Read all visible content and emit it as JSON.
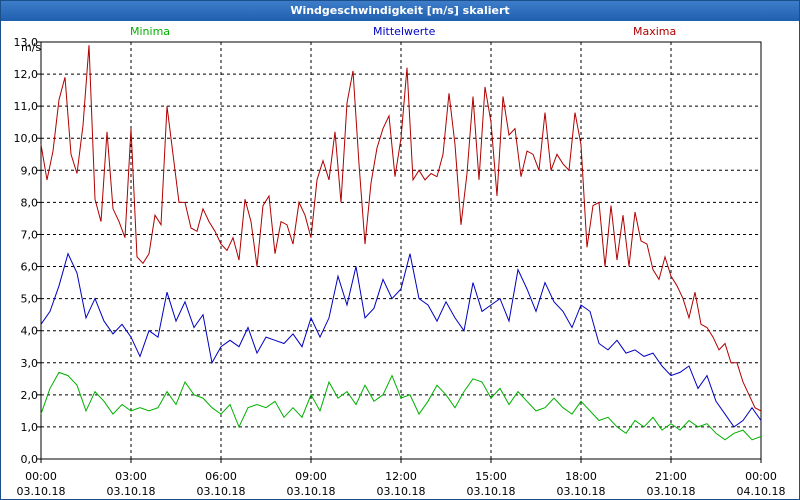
{
  "window": {
    "title": "Windgeschwindigkeit [m/s] skaliert"
  },
  "legend": [
    {
      "name": "Minima",
      "color": "#00b000"
    },
    {
      "name": "Mittelwerte",
      "color": "#0000c0"
    },
    {
      "name": "Maxima",
      "color": "#b00000"
    }
  ],
  "chart_data": {
    "type": "line",
    "title": "Windgeschwindigkeit [m/s] skaliert",
    "ylabel": "m/s",
    "xlabel": "",
    "ylim": [
      0,
      13
    ],
    "yticks": [
      "0,0",
      "1,0",
      "2,0",
      "3,0",
      "4,0",
      "5,0",
      "6,0",
      "7,0",
      "8,0",
      "9,0",
      "10,0",
      "11,0",
      "12,0",
      "13,0"
    ],
    "xticks": [
      {
        "time": "00:00",
        "date": "03.10.18"
      },
      {
        "time": "03:00",
        "date": "03.10.18"
      },
      {
        "time": "06:00",
        "date": "03.10.18"
      },
      {
        "time": "09:00",
        "date": "03.10.18"
      },
      {
        "time": "12:00",
        "date": "03.10.18"
      },
      {
        "time": "15:00",
        "date": "03.10.18"
      },
      {
        "time": "18:00",
        "date": "03.10.18"
      },
      {
        "time": "21:00",
        "date": "03.10.18"
      },
      {
        "time": "00:00",
        "date": "04.10.18"
      }
    ],
    "x_hours": [
      0,
      24
    ],
    "grid": true,
    "series": [
      {
        "name": "Maxima",
        "color": "#b00000",
        "points": [
          [
            0,
            9.8
          ],
          [
            0.2,
            8.7
          ],
          [
            0.4,
            9.6
          ],
          [
            0.6,
            11.2
          ],
          [
            0.8,
            11.9
          ],
          [
            1.0,
            9.5
          ],
          [
            1.2,
            8.9
          ],
          [
            1.4,
            10.4
          ],
          [
            1.6,
            12.9
          ],
          [
            1.8,
            8.1
          ],
          [
            2.0,
            7.4
          ],
          [
            2.2,
            10.2
          ],
          [
            2.4,
            7.8
          ],
          [
            2.6,
            7.4
          ],
          [
            2.8,
            6.9
          ],
          [
            3.0,
            10.3
          ],
          [
            3.2,
            6.3
          ],
          [
            3.4,
            6.1
          ],
          [
            3.6,
            6.4
          ],
          [
            3.8,
            7.6
          ],
          [
            4.0,
            7.3
          ],
          [
            4.2,
            11.0
          ],
          [
            4.4,
            9.5
          ],
          [
            4.6,
            8.0
          ],
          [
            4.8,
            8.0
          ],
          [
            5.0,
            7.2
          ],
          [
            5.2,
            7.1
          ],
          [
            5.4,
            7.8
          ],
          [
            5.6,
            7.4
          ],
          [
            5.8,
            7.1
          ],
          [
            6.0,
            6.7
          ],
          [
            6.2,
            6.5
          ],
          [
            6.4,
            6.9
          ],
          [
            6.6,
            6.2
          ],
          [
            6.8,
            8.1
          ],
          [
            7.0,
            7.4
          ],
          [
            7.2,
            6.0
          ],
          [
            7.4,
            7.9
          ],
          [
            7.6,
            8.2
          ],
          [
            7.8,
            6.4
          ],
          [
            8.0,
            7.4
          ],
          [
            8.2,
            7.3
          ],
          [
            8.4,
            6.7
          ],
          [
            8.6,
            8.0
          ],
          [
            8.8,
            7.6
          ],
          [
            9.0,
            6.9
          ],
          [
            9.2,
            8.7
          ],
          [
            9.4,
            9.3
          ],
          [
            9.6,
            8.7
          ],
          [
            9.8,
            10.2
          ],
          [
            10.0,
            8.0
          ],
          [
            10.2,
            11.1
          ],
          [
            10.4,
            12.1
          ],
          [
            10.6,
            9.2
          ],
          [
            10.8,
            6.7
          ],
          [
            11.0,
            8.6
          ],
          [
            11.2,
            9.7
          ],
          [
            11.4,
            10.3
          ],
          [
            11.6,
            10.7
          ],
          [
            11.8,
            8.8
          ],
          [
            12.0,
            10.0
          ],
          [
            12.2,
            12.2
          ],
          [
            12.4,
            8.7
          ],
          [
            12.6,
            9.0
          ],
          [
            12.8,
            8.7
          ],
          [
            13.0,
            8.9
          ],
          [
            13.2,
            8.8
          ],
          [
            13.4,
            9.5
          ],
          [
            13.6,
            11.4
          ],
          [
            13.8,
            9.8
          ],
          [
            14.0,
            7.3
          ],
          [
            14.2,
            8.9
          ],
          [
            14.4,
            11.3
          ],
          [
            14.6,
            8.7
          ],
          [
            14.8,
            11.6
          ],
          [
            15.0,
            10.5
          ],
          [
            15.2,
            8.2
          ],
          [
            15.4,
            11.3
          ],
          [
            15.6,
            10.1
          ],
          [
            15.8,
            10.3
          ],
          [
            16.0,
            8.8
          ],
          [
            16.2,
            9.6
          ],
          [
            16.4,
            9.5
          ],
          [
            16.6,
            9.0
          ],
          [
            16.8,
            10.8
          ],
          [
            17.0,
            9.0
          ],
          [
            17.2,
            9.5
          ],
          [
            17.4,
            9.2
          ],
          [
            17.6,
            9.0
          ],
          [
            17.8,
            10.8
          ],
          [
            18.0,
            9.8
          ],
          [
            18.2,
            6.6
          ],
          [
            18.4,
            7.9
          ],
          [
            18.6,
            8.0
          ],
          [
            18.8,
            6.0
          ],
          [
            19.0,
            7.9
          ],
          [
            19.2,
            6.2
          ],
          [
            19.4,
            7.6
          ],
          [
            19.6,
            6.0
          ],
          [
            19.8,
            7.7
          ],
          [
            20.0,
            6.8
          ],
          [
            20.2,
            6.7
          ],
          [
            20.4,
            5.9
          ],
          [
            20.6,
            5.6
          ],
          [
            20.8,
            6.3
          ],
          [
            21.0,
            5.7
          ],
          [
            21.2,
            5.4
          ],
          [
            21.4,
            5.0
          ],
          [
            21.6,
            4.4
          ],
          [
            21.8,
            5.2
          ],
          [
            22.0,
            4.2
          ],
          [
            22.2,
            4.1
          ],
          [
            22.4,
            3.8
          ],
          [
            22.6,
            3.4
          ],
          [
            22.8,
            3.6
          ],
          [
            23.0,
            3.0
          ],
          [
            23.2,
            3.0
          ],
          [
            23.4,
            2.4
          ],
          [
            23.6,
            2.0
          ],
          [
            23.8,
            1.6
          ],
          [
            24.0,
            1.5
          ]
        ]
      },
      {
        "name": "Mittelwerte",
        "color": "#0000c0",
        "points": [
          [
            0,
            4.2
          ],
          [
            0.3,
            4.6
          ],
          [
            0.6,
            5.4
          ],
          [
            0.9,
            6.4
          ],
          [
            1.2,
            5.8
          ],
          [
            1.5,
            4.4
          ],
          [
            1.8,
            5.0
          ],
          [
            2.1,
            4.3
          ],
          [
            2.4,
            3.9
          ],
          [
            2.7,
            4.2
          ],
          [
            3.0,
            3.8
          ],
          [
            3.3,
            3.2
          ],
          [
            3.6,
            4.0
          ],
          [
            3.9,
            3.8
          ],
          [
            4.2,
            5.2
          ],
          [
            4.5,
            4.3
          ],
          [
            4.8,
            4.9
          ],
          [
            5.1,
            4.1
          ],
          [
            5.4,
            4.5
          ],
          [
            5.7,
            3.0
          ],
          [
            6.0,
            3.5
          ],
          [
            6.3,
            3.7
          ],
          [
            6.6,
            3.5
          ],
          [
            6.9,
            4.1
          ],
          [
            7.2,
            3.3
          ],
          [
            7.5,
            3.8
          ],
          [
            7.8,
            3.7
          ],
          [
            8.1,
            3.6
          ],
          [
            8.4,
            3.9
          ],
          [
            8.7,
            3.5
          ],
          [
            9.0,
            4.4
          ],
          [
            9.3,
            3.8
          ],
          [
            9.6,
            4.4
          ],
          [
            9.9,
            5.7
          ],
          [
            10.2,
            4.8
          ],
          [
            10.5,
            6.0
          ],
          [
            10.8,
            4.4
          ],
          [
            11.1,
            4.7
          ],
          [
            11.4,
            5.6
          ],
          [
            11.7,
            5.0
          ],
          [
            12.0,
            5.3
          ],
          [
            12.3,
            6.4
          ],
          [
            12.6,
            5.0
          ],
          [
            12.9,
            4.8
          ],
          [
            13.2,
            4.3
          ],
          [
            13.5,
            4.9
          ],
          [
            13.8,
            4.4
          ],
          [
            14.1,
            4.0
          ],
          [
            14.4,
            5.5
          ],
          [
            14.7,
            4.6
          ],
          [
            15.0,
            4.8
          ],
          [
            15.3,
            5.0
          ],
          [
            15.6,
            4.3
          ],
          [
            15.9,
            5.9
          ],
          [
            16.2,
            5.3
          ],
          [
            16.5,
            4.6
          ],
          [
            16.8,
            5.5
          ],
          [
            17.1,
            4.9
          ],
          [
            17.4,
            4.6
          ],
          [
            17.7,
            4.1
          ],
          [
            18.0,
            4.8
          ],
          [
            18.3,
            4.6
          ],
          [
            18.6,
            3.6
          ],
          [
            18.9,
            3.4
          ],
          [
            19.2,
            3.7
          ],
          [
            19.5,
            3.3
          ],
          [
            19.8,
            3.4
          ],
          [
            20.1,
            3.2
          ],
          [
            20.4,
            3.3
          ],
          [
            20.7,
            2.9
          ],
          [
            21.0,
            2.6
          ],
          [
            21.3,
            2.7
          ],
          [
            21.6,
            2.9
          ],
          [
            21.9,
            2.2
          ],
          [
            22.2,
            2.6
          ],
          [
            22.5,
            1.8
          ],
          [
            22.8,
            1.4
          ],
          [
            23.1,
            1.0
          ],
          [
            23.4,
            1.2
          ],
          [
            23.7,
            1.6
          ],
          [
            24.0,
            1.2
          ]
        ]
      },
      {
        "name": "Minima",
        "color": "#00b000",
        "points": [
          [
            0,
            1.4
          ],
          [
            0.3,
            2.2
          ],
          [
            0.6,
            2.7
          ],
          [
            0.9,
            2.6
          ],
          [
            1.2,
            2.3
          ],
          [
            1.5,
            1.5
          ],
          [
            1.8,
            2.1
          ],
          [
            2.1,
            1.8
          ],
          [
            2.4,
            1.4
          ],
          [
            2.7,
            1.7
          ],
          [
            3.0,
            1.5
          ],
          [
            3.3,
            1.6
          ],
          [
            3.6,
            1.5
          ],
          [
            3.9,
            1.6
          ],
          [
            4.2,
            2.1
          ],
          [
            4.5,
            1.7
          ],
          [
            4.8,
            2.4
          ],
          [
            5.1,
            2.0
          ],
          [
            5.4,
            1.9
          ],
          [
            5.7,
            1.6
          ],
          [
            6.0,
            1.4
          ],
          [
            6.3,
            1.7
          ],
          [
            6.6,
            1.0
          ],
          [
            6.9,
            1.6
          ],
          [
            7.2,
            1.7
          ],
          [
            7.5,
            1.6
          ],
          [
            7.8,
            1.8
          ],
          [
            8.1,
            1.3
          ],
          [
            8.4,
            1.6
          ],
          [
            8.7,
            1.3
          ],
          [
            9.0,
            2.0
          ],
          [
            9.3,
            1.5
          ],
          [
            9.6,
            2.4
          ],
          [
            9.9,
            1.9
          ],
          [
            10.2,
            2.1
          ],
          [
            10.5,
            1.7
          ],
          [
            10.8,
            2.3
          ],
          [
            11.1,
            1.8
          ],
          [
            11.4,
            2.0
          ],
          [
            11.7,
            2.6
          ],
          [
            12.0,
            1.9
          ],
          [
            12.3,
            2.0
          ],
          [
            12.6,
            1.4
          ],
          [
            12.9,
            1.8
          ],
          [
            13.2,
            2.3
          ],
          [
            13.5,
            2.0
          ],
          [
            13.8,
            1.6
          ],
          [
            14.1,
            2.1
          ],
          [
            14.4,
            2.5
          ],
          [
            14.7,
            2.4
          ],
          [
            15.0,
            1.9
          ],
          [
            15.3,
            2.2
          ],
          [
            15.6,
            1.7
          ],
          [
            15.9,
            2.1
          ],
          [
            16.2,
            1.8
          ],
          [
            16.5,
            1.5
          ],
          [
            16.8,
            1.6
          ],
          [
            17.1,
            1.9
          ],
          [
            17.4,
            1.6
          ],
          [
            17.7,
            1.4
          ],
          [
            18.0,
            1.8
          ],
          [
            18.3,
            1.5
          ],
          [
            18.6,
            1.2
          ],
          [
            18.9,
            1.3
          ],
          [
            19.2,
            1.0
          ],
          [
            19.5,
            0.8
          ],
          [
            19.8,
            1.2
          ],
          [
            20.1,
            1.0
          ],
          [
            20.4,
            1.3
          ],
          [
            20.7,
            0.9
          ],
          [
            21.0,
            1.1
          ],
          [
            21.3,
            0.9
          ],
          [
            21.6,
            1.2
          ],
          [
            21.9,
            1.0
          ],
          [
            22.2,
            1.1
          ],
          [
            22.5,
            0.8
          ],
          [
            22.8,
            0.6
          ],
          [
            23.1,
            0.8
          ],
          [
            23.4,
            0.9
          ],
          [
            23.7,
            0.6
          ],
          [
            24.0,
            0.7
          ]
        ]
      }
    ]
  }
}
